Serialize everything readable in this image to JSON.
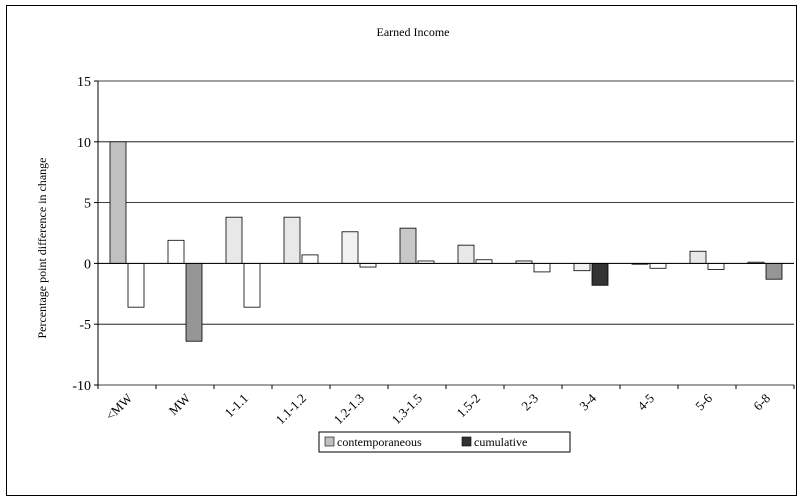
{
  "chart_data": {
    "type": "bar",
    "title": "Earned Income",
    "xlabel": "",
    "ylabel": "Percentage point difference in change",
    "ylim": [
      -10,
      15
    ],
    "yticks": [
      -10,
      -5,
      0,
      5,
      10,
      15
    ],
    "grid": true,
    "legend_position": "bottom",
    "categories": [
      "<MW",
      "MW",
      "1-1.1",
      "1.1-1.2",
      "1.2-1.3",
      "1.3-1.5",
      "1.5-2",
      "2-3",
      "3-4",
      "4-5",
      "5-6",
      "6-8"
    ],
    "series": [
      {
        "name": "contemporaneous",
        "values": [
          10.0,
          1.9,
          3.8,
          3.8,
          2.6,
          2.9,
          1.5,
          0.2,
          -0.6,
          0.0,
          1.0,
          0.1
        ],
        "fills": [
          "#c0c0c0",
          "#ffffff",
          "#e8e8e8",
          "#e8e8e8",
          "#f2f2f2",
          "#c8c8c8",
          "#e8e8e8",
          "#f2f2f2",
          "#f2f2f2",
          "#ffffff",
          "#e8e8e8",
          "#f2f2f2"
        ],
        "legend_color": "#c0c0c0"
      },
      {
        "name": "cumulative",
        "values": [
          -3.6,
          -6.4,
          -3.6,
          0.7,
          -0.3,
          0.2,
          0.3,
          -0.7,
          -1.8,
          -0.4,
          -0.5,
          -1.3
        ],
        "fills": [
          "#ffffff",
          "#969696",
          "#ffffff",
          "#ffffff",
          "#ffffff",
          "#ffffff",
          "#ffffff",
          "#ffffff",
          "#333333",
          "#ffffff",
          "#ffffff",
          "#969696"
        ],
        "legend_color": "#333333"
      }
    ]
  }
}
